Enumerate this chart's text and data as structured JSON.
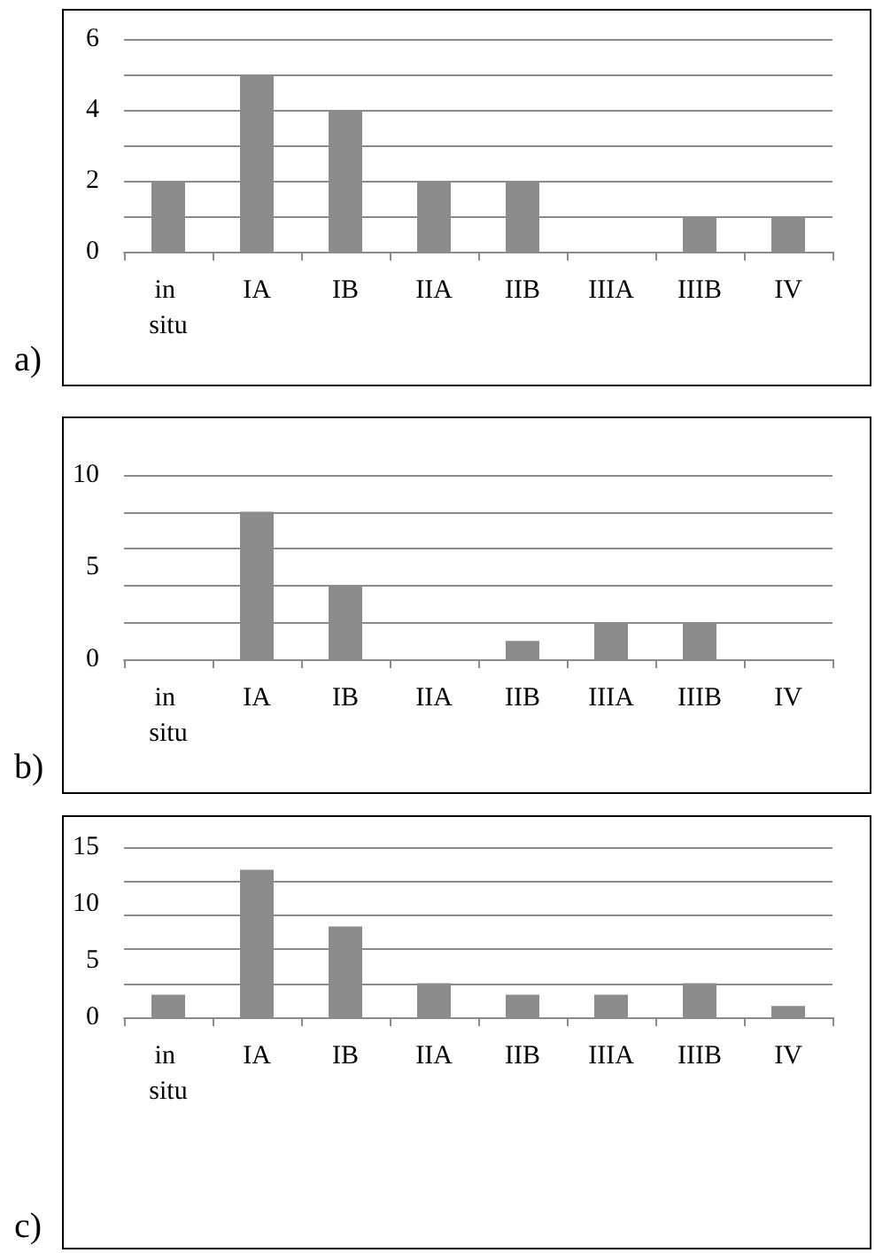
{
  "chart_data": [
    {
      "type": "bar",
      "title": "a)",
      "categories": [
        "in situ",
        "IA",
        "IB",
        "IIA",
        "IIB",
        "IIIA",
        "IIIB",
        "IV"
      ],
      "color": "#8c8c8c",
      "ylim": [
        0,
        6
      ],
      "yticks": [
        0,
        2,
        4,
        6
      ],
      "grid": "y",
      "values": [
        2,
        5,
        4,
        2,
        2,
        0,
        1,
        1
      ]
    },
    {
      "type": "bar",
      "title": "b)",
      "categories": [
        "in situ",
        "IA",
        "IB",
        "IIA",
        "IIB",
        "IIIA",
        "IIIB",
        "IV"
      ],
      "color": "#8c8c8c",
      "ylim": [
        0,
        10
      ],
      "yticks": [
        0,
        5,
        10
      ],
      "grid": "y",
      "values": [
        0,
        8,
        4,
        0,
        1,
        2,
        2,
        0
      ]
    },
    {
      "type": "bar",
      "title": "c)",
      "categories": [
        "in situ",
        "IA",
        "IB",
        "IIA",
        "IIB",
        "IIIA",
        "IIIB",
        "IV"
      ],
      "color": "#8c8c8c",
      "ylim": [
        0,
        15
      ],
      "yticks": [
        0,
        5,
        10,
        15
      ],
      "grid": "y",
      "values": [
        2,
        13,
        8,
        3,
        2,
        2,
        3,
        1
      ]
    }
  ]
}
